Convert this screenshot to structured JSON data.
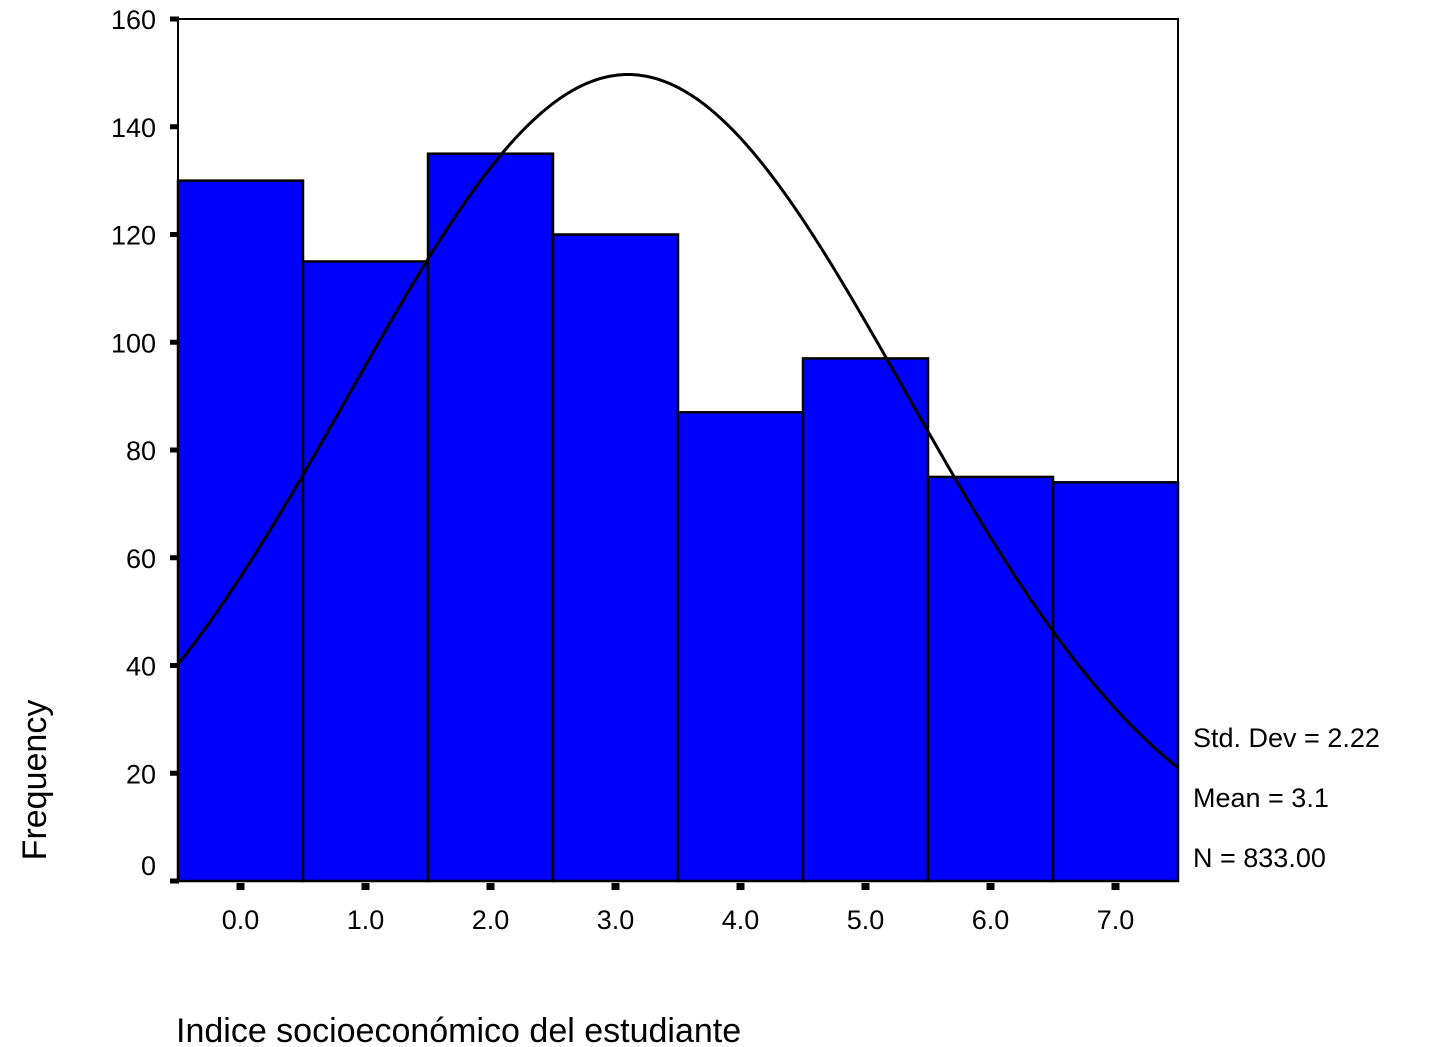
{
  "chart_data": {
    "type": "bar",
    "categories": [
      "0.0",
      "1.0",
      "2.0",
      "3.0",
      "4.0",
      "5.0",
      "6.0",
      "7.0"
    ],
    "values": [
      130,
      115,
      135,
      120,
      87,
      97,
      75,
      74
    ],
    "x_range": [
      -0.5,
      7.5
    ],
    "ylim": [
      0,
      160
    ],
    "y_ticks": [
      "0",
      "20",
      "40",
      "60",
      "80",
      "100",
      "120",
      "140",
      "160"
    ],
    "xlabel": "Indice socioeconómico del estudiante",
    "ylabel": "Frequency",
    "grid": false,
    "legend": "none",
    "normal_curve": {
      "mean": 3.1,
      "std_dev": 2.22,
      "n": 833,
      "bin_width": 1
    },
    "stats": [
      "Std. Dev = 2.22",
      "Mean = 3.1",
      "N = 833.00"
    ],
    "colors": {
      "bar_fill": "#0000ff",
      "bar_stroke": "#000000",
      "curve": "#000000",
      "frame": "#000000"
    }
  }
}
